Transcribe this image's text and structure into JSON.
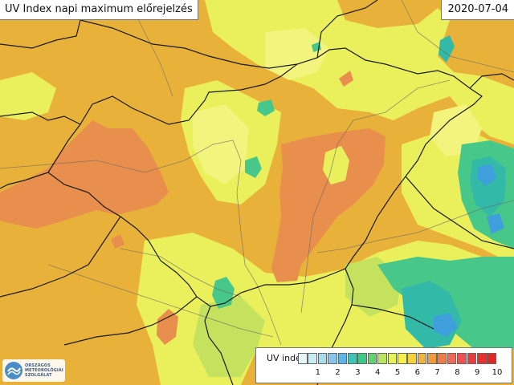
{
  "header": {
    "title": "UV Index napi maximum előrejelzés",
    "date": "2020-07-04"
  },
  "logo": {
    "lines": [
      "ORSZÁGOS",
      "METEOROLÓGIAI",
      "SZOLGÁLAT"
    ]
  },
  "legend": {
    "title": "UV index",
    "colors": [
      "#e6f6f6",
      "#c8ecf2",
      "#a6dcec",
      "#86c6ec",
      "#5eb4e6",
      "#3cc4b4",
      "#3ec888",
      "#62d46e",
      "#b8e660",
      "#e6f25a",
      "#f6f04a",
      "#f6d438",
      "#f0b43a",
      "#ee9a3e",
      "#ee7c4a",
      "#ee6a58",
      "#f05050",
      "#ee3a3a",
      "#e82e2e",
      "#e02626"
    ],
    "tick_labels": [
      "1",
      "2",
      "3",
      "4",
      "5",
      "6",
      "7",
      "8",
      "9",
      "10"
    ]
  },
  "map_colors": {
    "base": "#e8b23a",
    "yellow": "#eaf05c",
    "pale_yellow": "#f2f47e",
    "light_green": "#c4e25e",
    "orange": "#e98f4e",
    "green": "#48c78a",
    "teal": "#33b9a8",
    "blue": "#3f9fdc",
    "border": "#1a1a1a",
    "river": "#666666"
  }
}
